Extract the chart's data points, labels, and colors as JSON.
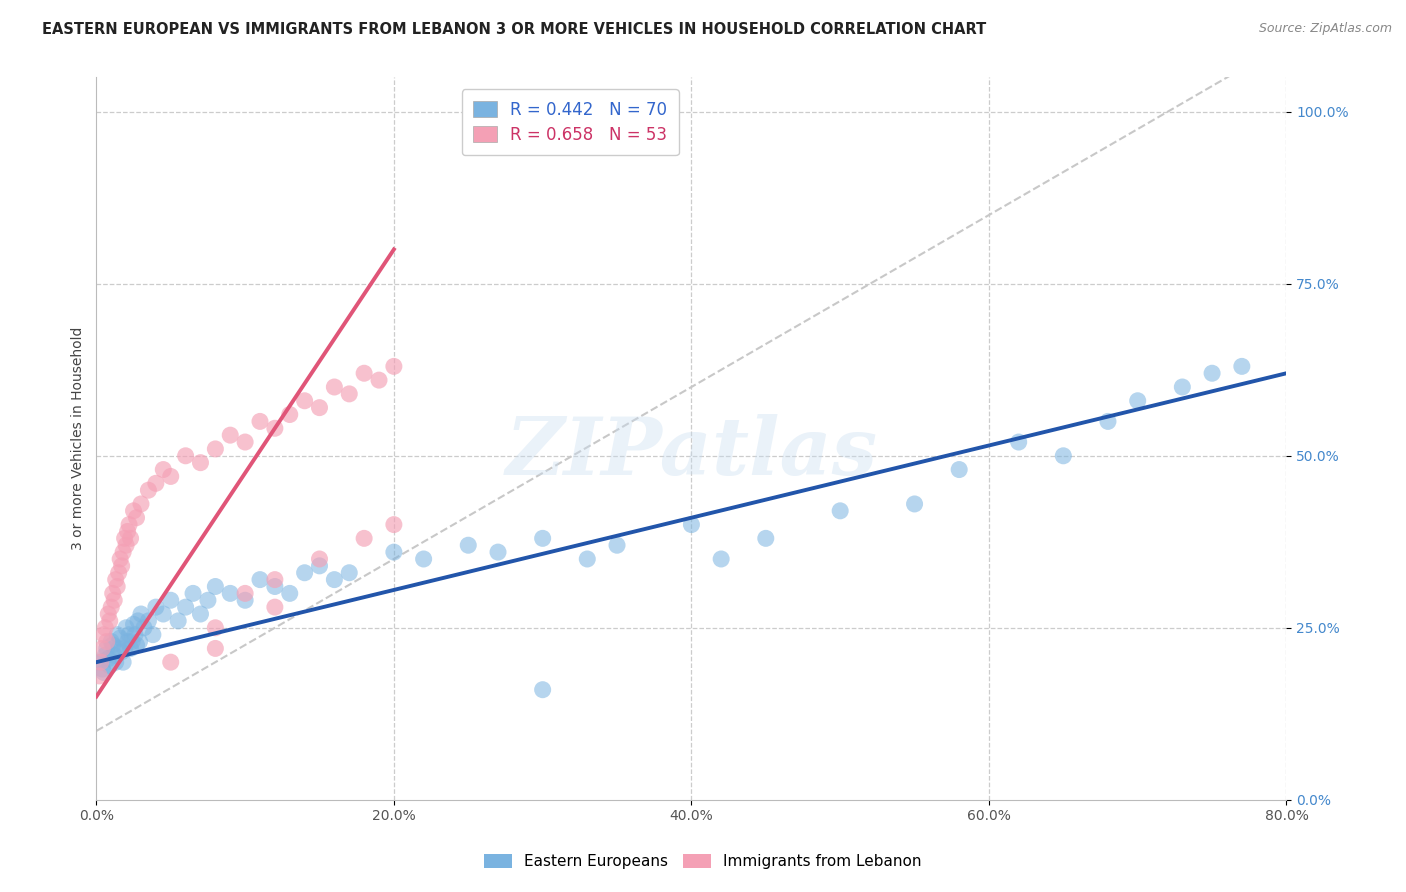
{
  "title": "EASTERN EUROPEAN VS IMMIGRANTS FROM LEBANON 3 OR MORE VEHICLES IN HOUSEHOLD CORRELATION CHART",
  "source": "Source: ZipAtlas.com",
  "ylabel": "3 or more Vehicles in Household",
  "xlim": [
    0.0,
    80.0
  ],
  "ylim": [
    10.0,
    105.0
  ],
  "xticks": [
    0.0,
    20.0,
    40.0,
    60.0,
    80.0
  ],
  "yticks": [
    25.0,
    50.0,
    75.0,
    100.0
  ],
  "yticks_with_zero": [
    0.0,
    25.0,
    50.0,
    75.0,
    100.0
  ],
  "blue_color": "#7ab3e0",
  "pink_color": "#f4a0b5",
  "blue_line_color": "#2255aa",
  "pink_line_color": "#e05578",
  "ref_line_color": "#c8c8c8",
  "legend_blue_label": "R = 0.442   N = 70",
  "legend_pink_label": "R = 0.658   N = 53",
  "legend_label_blue": "Eastern Europeans",
  "legend_label_pink": "Immigrants from Lebanon",
  "watermark": "ZIPatlas",
  "blue_line_x0": 0.0,
  "blue_line_y0": 20.0,
  "blue_line_x1": 80.0,
  "blue_line_y1": 62.0,
  "pink_line_x0": 0.0,
  "pink_line_y0": 15.0,
  "pink_line_x1": 20.0,
  "pink_line_y1": 80.0,
  "blue_scatter_x": [
    0.3,
    0.4,
    0.5,
    0.6,
    0.7,
    0.8,
    0.9,
    1.0,
    1.1,
    1.2,
    1.3,
    1.4,
    1.5,
    1.6,
    1.7,
    1.8,
    1.9,
    2.0,
    2.1,
    2.2,
    2.3,
    2.4,
    2.5,
    2.6,
    2.7,
    2.8,
    2.9,
    3.0,
    3.2,
    3.5,
    3.8,
    4.0,
    4.5,
    5.0,
    5.5,
    6.0,
    6.5,
    7.0,
    7.5,
    8.0,
    9.0,
    10.0,
    11.0,
    12.0,
    13.0,
    14.0,
    15.0,
    16.0,
    17.0,
    20.0,
    22.0,
    25.0,
    27.0,
    30.0,
    33.0,
    35.0,
    40.0,
    45.0,
    50.0,
    55.0,
    58.0,
    62.0,
    65.0,
    68.0,
    70.0,
    73.0,
    75.0,
    77.0,
    30.0,
    42.0
  ],
  "blue_scatter_y": [
    20.0,
    19.0,
    18.5,
    21.0,
    22.0,
    20.5,
    19.5,
    23.0,
    22.5,
    21.0,
    20.0,
    24.0,
    22.0,
    23.5,
    21.5,
    20.0,
    22.0,
    25.0,
    23.0,
    24.0,
    22.0,
    23.0,
    25.5,
    24.0,
    22.5,
    26.0,
    23.0,
    27.0,
    25.0,
    26.0,
    24.0,
    28.0,
    27.0,
    29.0,
    26.0,
    28.0,
    30.0,
    27.0,
    29.0,
    31.0,
    30.0,
    29.0,
    32.0,
    31.0,
    30.0,
    33.0,
    34.0,
    32.0,
    33.0,
    36.0,
    35.0,
    37.0,
    36.0,
    38.0,
    35.0,
    37.0,
    40.0,
    38.0,
    42.0,
    43.0,
    48.0,
    52.0,
    50.0,
    55.0,
    58.0,
    60.0,
    62.0,
    63.0,
    16.0,
    35.0
  ],
  "pink_scatter_x": [
    0.2,
    0.3,
    0.4,
    0.5,
    0.6,
    0.7,
    0.8,
    0.9,
    1.0,
    1.1,
    1.2,
    1.3,
    1.4,
    1.5,
    1.6,
    1.7,
    1.8,
    1.9,
    2.0,
    2.1,
    2.2,
    2.3,
    2.5,
    2.7,
    3.0,
    3.5,
    4.0,
    4.5,
    5.0,
    6.0,
    7.0,
    8.0,
    9.0,
    10.0,
    11.0,
    12.0,
    13.0,
    14.0,
    15.0,
    16.0,
    17.0,
    18.0,
    19.0,
    20.0,
    5.0,
    8.0,
    10.0,
    12.0,
    15.0,
    18.0,
    20.0,
    8.0,
    12.0
  ],
  "pink_scatter_y": [
    18.0,
    20.0,
    22.0,
    24.0,
    25.0,
    23.0,
    27.0,
    26.0,
    28.0,
    30.0,
    29.0,
    32.0,
    31.0,
    33.0,
    35.0,
    34.0,
    36.0,
    38.0,
    37.0,
    39.0,
    40.0,
    38.0,
    42.0,
    41.0,
    43.0,
    45.0,
    46.0,
    48.0,
    47.0,
    50.0,
    49.0,
    51.0,
    53.0,
    52.0,
    55.0,
    54.0,
    56.0,
    58.0,
    57.0,
    60.0,
    59.0,
    62.0,
    61.0,
    63.0,
    20.0,
    25.0,
    30.0,
    32.0,
    35.0,
    38.0,
    40.0,
    22.0,
    28.0
  ],
  "grid_color": "#cccccc",
  "bg_color": "#ffffff",
  "title_fontsize": 10.5,
  "axis_fontsize": 10,
  "tick_fontsize": 10
}
